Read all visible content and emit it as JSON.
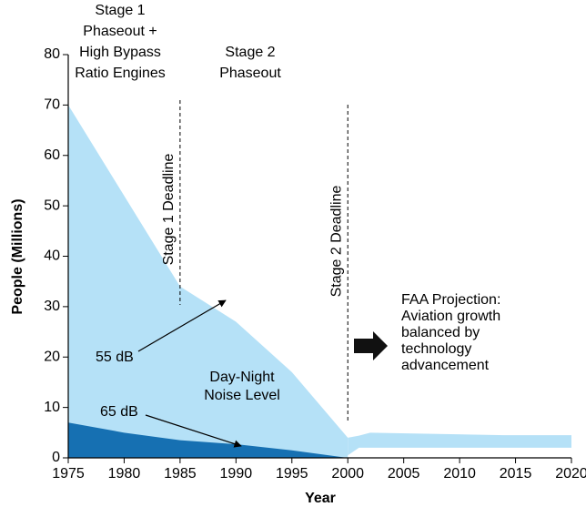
{
  "chart_data": {
    "type": "area",
    "xlabel": "Year",
    "ylabel": "People (Millions)",
    "xlim": [
      1975,
      2020
    ],
    "ylim": [
      0,
      80
    ],
    "xticks": [
      1975,
      1980,
      1985,
      1990,
      1995,
      2000,
      2005,
      2010,
      2015,
      2020
    ],
    "yticks": [
      0,
      10,
      20,
      30,
      40,
      50,
      60,
      70,
      80
    ],
    "series": [
      {
        "name": "55 dB",
        "color": "#b5e1f7",
        "x": [
          1975,
          1985,
          1990,
          1995,
          2000
        ],
        "values": [
          70,
          34,
          27,
          17,
          4
        ]
      },
      {
        "name": "FAA Projection",
        "color": "#b5e1f7",
        "x": [
          2000,
          2001,
          2002,
          2014,
          2020
        ],
        "values": [
          4,
          4.4,
          5,
          4.5,
          4.5
        ],
        "lower": [
          0.5,
          2,
          2,
          2,
          2
        ]
      },
      {
        "name": "65 dB",
        "color": "#1670b2",
        "x": [
          1975,
          1980,
          1985,
          1990,
          1995,
          2000
        ],
        "values": [
          7,
          5,
          3.5,
          2.7,
          1.5,
          0
        ]
      }
    ],
    "deadlines": [
      {
        "x": 1985,
        "label": "Stage 1 Deadline"
      },
      {
        "x": 2000,
        "label": "Stage 2 Deadline"
      }
    ],
    "stage1_label": [
      "Stage 1",
      "Phaseout +",
      "High Bypass",
      "Ratio Engines"
    ],
    "stage2_label": [
      "Stage 2",
      "Phaseout"
    ],
    "projection_label": [
      "FAA Projection:",
      "Aviation growth",
      "balanced by",
      "technology",
      "advancement"
    ],
    "noise_label": [
      "Day-Night",
      "Noise Level"
    ],
    "label_55": "55 dB",
    "label_65": "65 dB"
  }
}
